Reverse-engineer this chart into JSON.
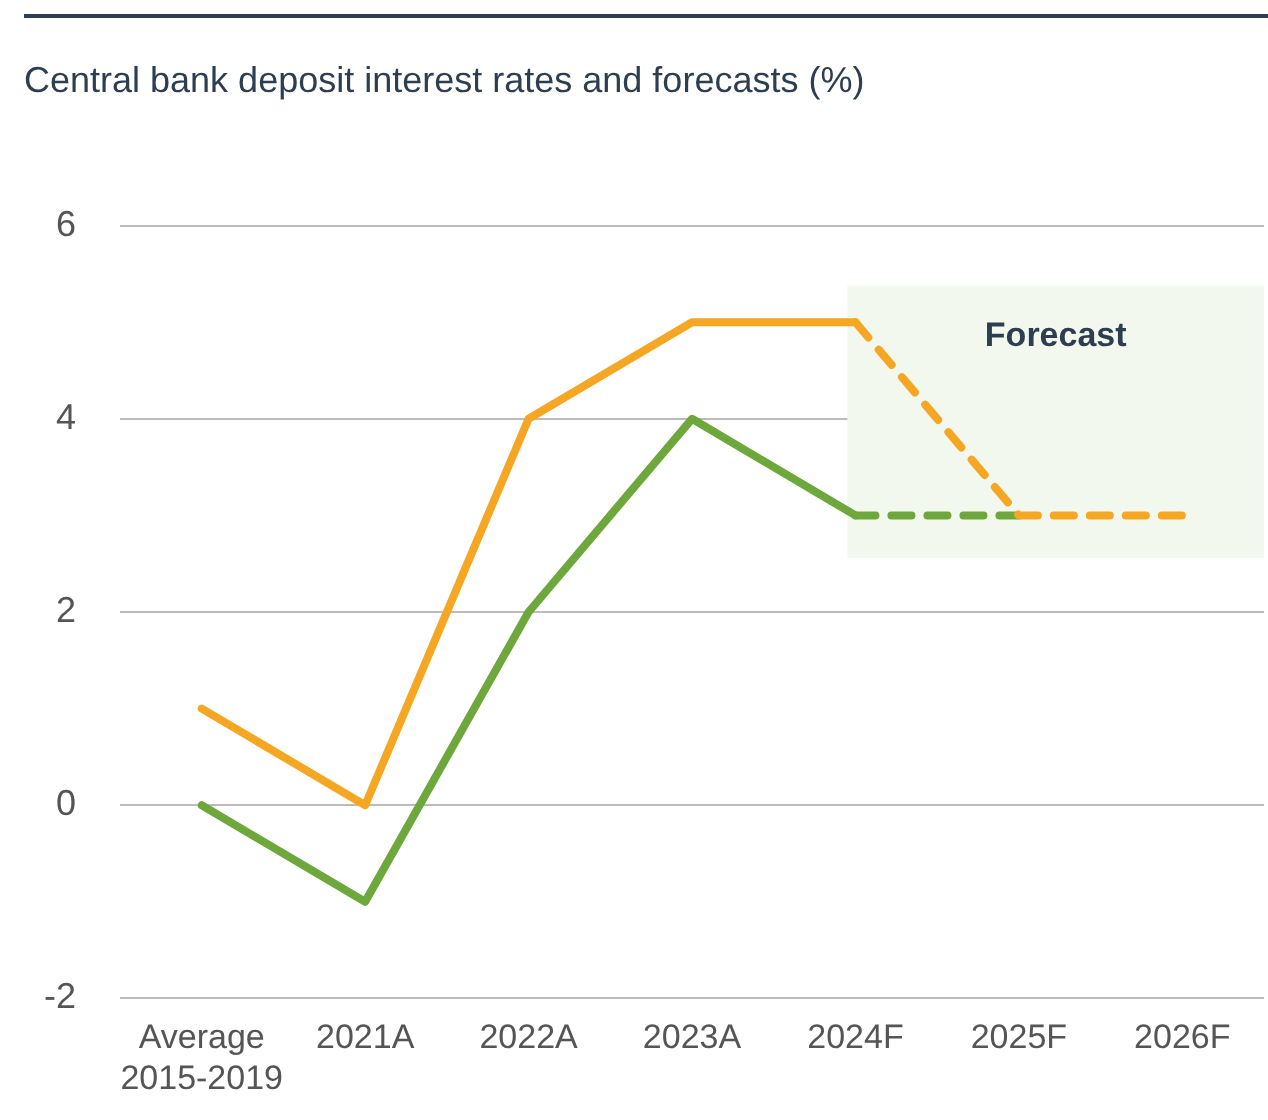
{
  "chart_data": {
    "type": "line",
    "title": "Central bank deposit interest rates and forecasts (%)",
    "categories": [
      "Average 2015-2019",
      "2021A",
      "2022A",
      "2023A",
      "2024F",
      "2025F",
      "2026F"
    ],
    "series": [
      {
        "color": "#f5a623",
        "values": [
          1,
          0,
          4,
          5,
          5,
          null,
          null
        ],
        "line_style": "solid"
      },
      {
        "color": "#f5a623",
        "values": [
          null,
          null,
          null,
          null,
          5,
          3,
          3
        ],
        "line_style": "dashed"
      },
      {
        "color": "#6ea83c",
        "values": [
          0,
          -1,
          2,
          4,
          3,
          null,
          null
        ],
        "line_style": "solid"
      },
      {
        "color": "#6ea83c",
        "values": [
          null,
          null,
          null,
          null,
          3,
          3,
          null
        ],
        "line_style": "dashed"
      }
    ],
    "ylim": [
      -2,
      6
    ],
    "yticks": [
      -2,
      0,
      2,
      4,
      6
    ],
    "grid": "y",
    "marker": "none",
    "legend": false,
    "bands": [
      {
        "axis": "x",
        "from": "2024F",
        "to": "2026F",
        "label": "Forecast",
        "color": "#f2f8ee"
      }
    ]
  }
}
